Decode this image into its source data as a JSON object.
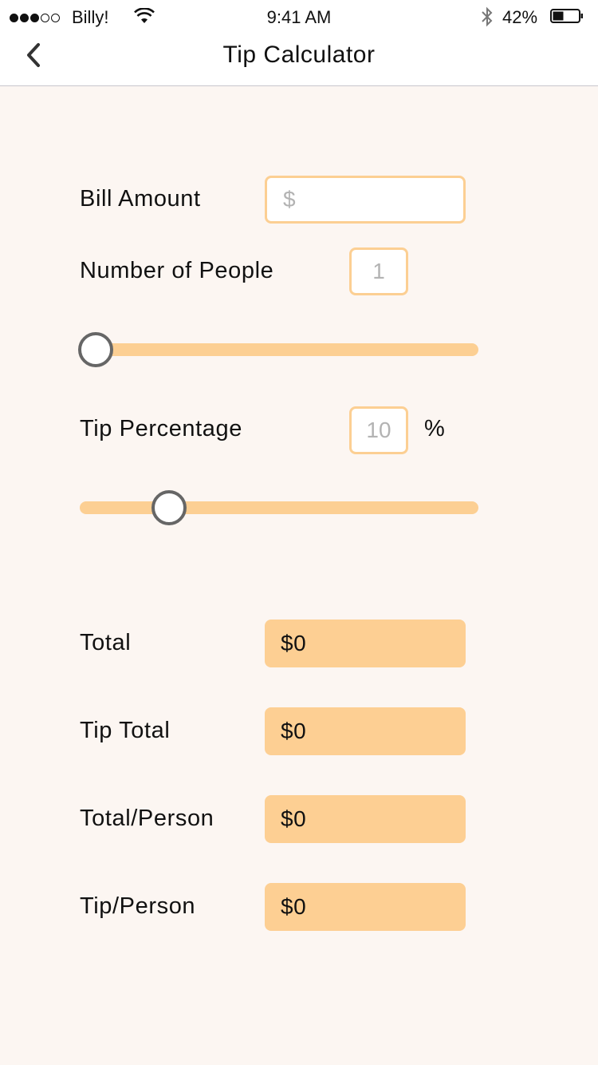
{
  "status_bar": {
    "carrier": "Billy!",
    "time": "9:41 AM",
    "battery": "42%",
    "signal_filled": 3,
    "signal_total": 5
  },
  "nav": {
    "title": "Tip Calculator",
    "back_icon": "chevron-left-icon"
  },
  "form": {
    "bill_label": "Bill Amount",
    "bill_placeholder": "$",
    "people_label": "Number of People",
    "people_placeholder": "1",
    "people_slider_level": 0,
    "tip_label": "Tip Percentage",
    "tip_placeholder": "10",
    "tip_unit": "%",
    "tip_slider_level": 0.2
  },
  "results": {
    "total_label": "Total",
    "total_value": "$0",
    "tip_total_label": "Tip Total",
    "tip_total_value": "$0",
    "total_person_label": "Total/Person",
    "total_person_value": "$0",
    "tip_person_label": "Tip/Person",
    "tip_person_value": "$0"
  },
  "colors": {
    "accent": "#fccf93",
    "background": "#fcf6f2",
    "thumb_border": "#666666"
  }
}
